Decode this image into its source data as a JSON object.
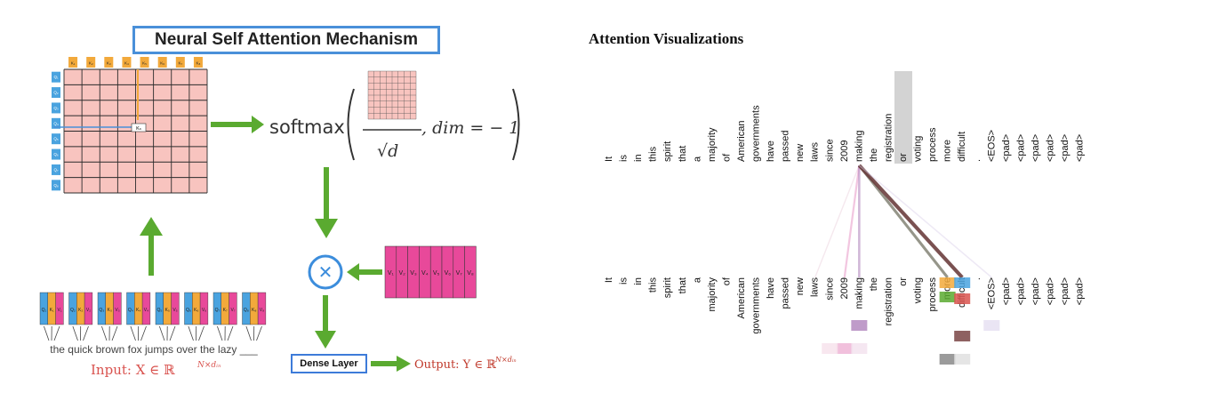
{
  "left_panel": {
    "title": "Neural Self Attention Mechanism",
    "matrix_tokens": "Kₙ",
    "q_labels": [
      "Q₁",
      "Q₂",
      "Q₃",
      "Q₄",
      "Q₅",
      "Q₆",
      "Q₇",
      "Q₈"
    ],
    "k_labels": [
      "K₁",
      "K₂",
      "K₃",
      "K₄",
      "K₅",
      "K₆",
      "K₇",
      "K₈"
    ],
    "cell_label": "Kₙ",
    "softmax_word": "softmax",
    "sqrt_d": "√d",
    "dim_text": ", dim = − 1",
    "multiply_symbol": "✕",
    "v_labels": [
      "V₁",
      "V₂",
      "V₃",
      "V₄",
      "V₅",
      "V₆",
      "V₇",
      "V₈"
    ],
    "dense_label": "Dense Layer",
    "output_label": "Output: Y ∈ ℝ",
    "output_sup": "N×dᵢₙ",
    "sentence": "the quick brown fox jumps over the lazy ___",
    "input_label": "Input: X ∈ ℝ",
    "input_sup": "N×dᵢₙ",
    "qkv_groups": [
      [
        "Q₁",
        "K₁",
        "V₁"
      ],
      [
        "Q₂",
        "K₂",
        "V₂"
      ],
      [
        "Q₃",
        "K₃",
        "V₃"
      ],
      [
        "Q₄",
        "K₄",
        "V₄"
      ],
      [
        "Q₅",
        "K₅",
        "V₅"
      ],
      [
        "Q₆",
        "K₆",
        "V₆"
      ],
      [
        "Q₇",
        "K₇",
        "V₇"
      ],
      [
        "Q₈",
        "K₈",
        "V₈"
      ]
    ],
    "colors": {
      "grid_fill": "#f8c4bf",
      "q_color": "#4aa3df",
      "k_color": "#f2a93b",
      "v_color": "#e8499a",
      "arrow_green": "#5aaa30",
      "title_border": "#4a90d9",
      "input_red": "#d9534f",
      "output_red": "#c0392b"
    }
  },
  "right_panel": {
    "title": "Attention Visualizations",
    "top_tokens": [
      "It",
      "is",
      "in",
      "this",
      "spirit",
      "that",
      "a",
      "majority",
      "of",
      "American",
      "governments",
      "have",
      "passed",
      "new",
      "laws",
      "since",
      "2009",
      "making",
      "the",
      "registration",
      "or",
      "voting",
      "process",
      "more",
      "difficult",
      ".",
      "<EOS>",
      "<pad>",
      "<pad>",
      "<pad>",
      "<pad>",
      "<pad>",
      "<pad>"
    ],
    "bottom_tokens": [
      "It",
      "is",
      "in",
      "this",
      "spirit",
      "that",
      "a",
      "majority",
      "of",
      "American",
      "governments",
      "have",
      "passed",
      "new",
      "laws",
      "since",
      "2009",
      "making",
      "the",
      "registration",
      "or",
      "voting",
      "process",
      "more",
      "difficult",
      ".",
      "<EOS>",
      "<pad>",
      "<pad>",
      "<pad>",
      "<pad>",
      "<pad>",
      "<pad>"
    ],
    "focus_token": "making",
    "attention_from_focus": [
      {
        "target": "laws",
        "weight": 0.12,
        "color": "#e8c9d6"
      },
      {
        "target": "2009",
        "weight": 0.35,
        "color": "#e89ac8"
      },
      {
        "target": "making",
        "weight": 0.45,
        "color": "#b48ac0"
      },
      {
        "target": "more",
        "weight": 0.6,
        "color": "#6b6b5a"
      },
      {
        "target": "difficult",
        "weight": 0.9,
        "color": "#6a3c3c"
      },
      {
        "target": "<EOS>",
        "weight": 0.15,
        "color": "#d8cde8"
      }
    ]
  }
}
